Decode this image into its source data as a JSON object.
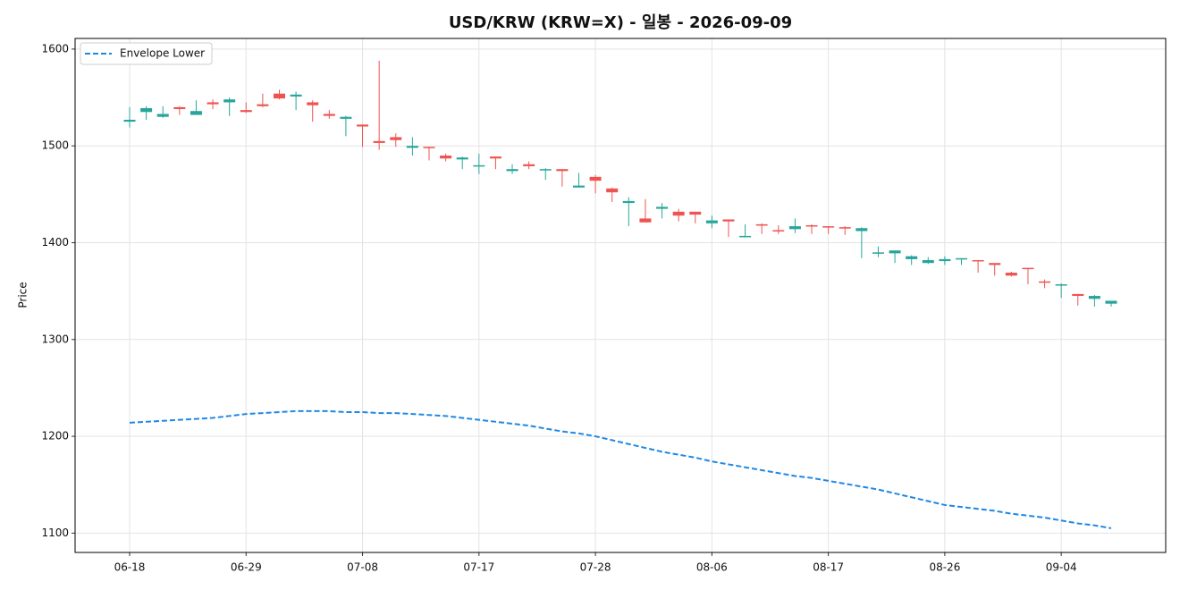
{
  "chart_data": {
    "type": "candlestick",
    "title": "USD/KRW (KRW=X) - 일봉 - 2026-09-09",
    "ylabel": "Price",
    "categories": [
      "06-18",
      null,
      null,
      null,
      null,
      null,
      null,
      "06-29",
      null,
      null,
      null,
      null,
      null,
      null,
      "07-08",
      null,
      null,
      null,
      null,
      null,
      null,
      "07-17",
      null,
      null,
      null,
      null,
      null,
      null,
      "07-28",
      null,
      null,
      null,
      null,
      null,
      null,
      "08-06",
      null,
      null,
      null,
      null,
      null,
      null,
      "08-17",
      null,
      null,
      null,
      null,
      null,
      null,
      "08-26",
      null,
      null,
      null,
      null,
      null,
      null,
      "09-04",
      null,
      null,
      null
    ],
    "ohlc": {
      "open": [
        1525,
        1535,
        1530,
        1540,
        1532,
        1545,
        1545,
        1537,
        1543,
        1554,
        1551,
        1545,
        1533,
        1528,
        1522,
        1505,
        1509,
        1498,
        1499,
        1490,
        1486,
        1479,
        1489,
        1474,
        1481,
        1475,
        1476,
        1457,
        1468,
        1456,
        1441,
        1425,
        1435,
        1432,
        1432,
        1420,
        1424,
        1406,
        1419,
        1413,
        1414,
        1418,
        1417,
        1416,
        1412,
        1389,
        1389,
        1383,
        1379,
        1381,
        1383,
        1382,
        1379,
        1369,
        1374,
        1360,
        1356,
        1347,
        1342,
        1337
      ],
      "high": [
        1540,
        1541,
        1541,
        1541,
        1547,
        1548,
        1550,
        1545,
        1554,
        1558,
        1556,
        1547,
        1537,
        1531,
        1522,
        1588,
        1513,
        1509,
        1499,
        1492,
        1489,
        1492,
        1489,
        1481,
        1484,
        1477,
        1476,
        1472,
        1470,
        1457,
        1447,
        1445,
        1441,
        1435,
        1432,
        1428,
        1424,
        1419,
        1420,
        1418,
        1425,
        1419,
        1417,
        1417,
        1416,
        1396,
        1392,
        1387,
        1385,
        1386,
        1384,
        1382,
        1379,
        1370,
        1374,
        1362,
        1358,
        1347,
        1346,
        1340
      ],
      "low": [
        1519,
        1527,
        1529,
        1532,
        1532,
        1538,
        1531,
        1534,
        1540,
        1548,
        1537,
        1525,
        1528,
        1510,
        1499,
        1496,
        1499,
        1490,
        1485,
        1484,
        1476,
        1471,
        1476,
        1471,
        1476,
        1465,
        1458,
        1457,
        1451,
        1442,
        1417,
        1421,
        1425,
        1422,
        1420,
        1415,
        1406,
        1406,
        1409,
        1409,
        1410,
        1409,
        1409,
        1408,
        1384,
        1385,
        1379,
        1377,
        1378,
        1377,
        1377,
        1369,
        1366,
        1365,
        1357,
        1353,
        1343,
        1335,
        1334,
        1334
      ],
      "close": [
        1527,
        1539,
        1533,
        1538,
        1536,
        1543,
        1548,
        1535,
        1541,
        1549,
        1553,
        1542,
        1531,
        1530,
        1520,
        1503,
        1506,
        1500,
        1498,
        1487,
        1488,
        1480,
        1487,
        1476,
        1479,
        1476,
        1474,
        1459,
        1464,
        1452,
        1443,
        1421,
        1437,
        1428,
        1429,
        1423,
        1422,
        1407,
        1418,
        1412,
        1417,
        1417,
        1416,
        1415,
        1415,
        1390,
        1392,
        1386,
        1382,
        1383,
        1384,
        1381,
        1377,
        1366,
        1373,
        1359,
        1357,
        1345,
        1345,
        1340
      ],
      "up_color": "#26a69a",
      "down_color": "#ef5350"
    },
    "series": [
      {
        "name": "Envelope Lower",
        "color": "#1e88e5",
        "style": "dashed",
        "values": [
          1214,
          1215,
          1216,
          1217,
          1218,
          1219,
          1221,
          1223,
          1224,
          1225,
          1226,
          1226,
          1226,
          1225,
          1225,
          1224,
          1224,
          1223,
          1222,
          1221,
          1219,
          1217,
          1215,
          1213,
          1211,
          1208,
          1205,
          1203,
          1200,
          1196,
          1192,
          1188,
          1184,
          1181,
          1178,
          1174,
          1171,
          1168,
          1165,
          1162,
          1159,
          1157,
          1154,
          1151,
          1148,
          1145,
          1141,
          1137,
          1133,
          1129,
          1127,
          1125,
          1123,
          1120,
          1118,
          1116,
          1113,
          1110,
          1108,
          1105
        ]
      }
    ],
    "ylim": [
      1080,
      1611
    ],
    "yticks": [
      1100,
      1200,
      1300,
      1400,
      1500,
      1600
    ],
    "grid": true,
    "legend": "upper left"
  }
}
